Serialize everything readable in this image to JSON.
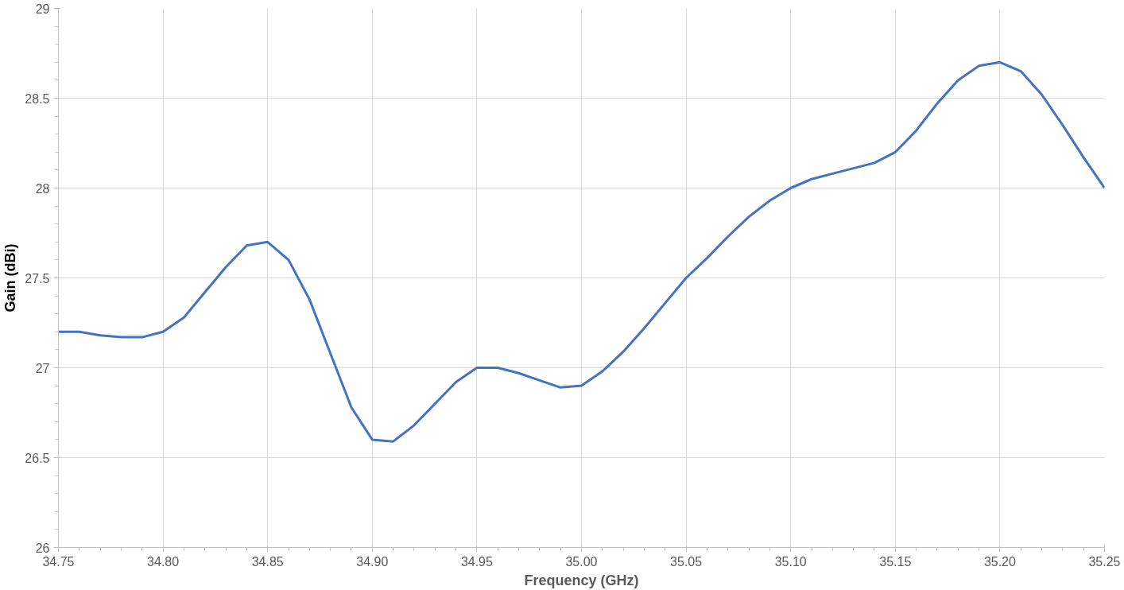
{
  "chart_data": {
    "type": "line",
    "xlabel": "Frequency (GHz)",
    "ylabel": "Gain (dBi)",
    "x": [
      34.75,
      34.76,
      34.77,
      34.78,
      34.79,
      34.8,
      34.81,
      34.82,
      34.83,
      34.84,
      34.85,
      34.86,
      34.87,
      34.88,
      34.89,
      34.9,
      34.91,
      34.92,
      34.93,
      34.94,
      34.95,
      34.96,
      34.97,
      34.98,
      34.99,
      35.0,
      35.01,
      35.02,
      35.03,
      35.04,
      35.05,
      35.06,
      35.07,
      35.08,
      35.09,
      35.1,
      35.11,
      35.12,
      35.13,
      35.14,
      35.15,
      35.16,
      35.17,
      35.18,
      35.19,
      35.2,
      35.21,
      35.22,
      35.23,
      35.24,
      35.25
    ],
    "series": [
      {
        "color": "#4472c4",
        "values": [
          27.2,
          27.2,
          27.18,
          27.17,
          27.17,
          27.2,
          27.28,
          27.42,
          27.56,
          27.68,
          27.7,
          27.6,
          27.38,
          27.08,
          26.78,
          26.6,
          26.59,
          26.68,
          26.8,
          26.92,
          27.0,
          27.0,
          26.97,
          26.93,
          26.89,
          26.9,
          26.98,
          27.09,
          27.22,
          27.36,
          27.5,
          27.61,
          27.73,
          27.84,
          27.93,
          28.0,
          28.05,
          28.08,
          28.11,
          28.14,
          28.2,
          28.32,
          28.47,
          28.6,
          28.68,
          28.7,
          28.65,
          28.52,
          28.35,
          28.17,
          28.0
        ]
      }
    ],
    "xlim": [
      34.75,
      35.25
    ],
    "ylim": [
      26,
      29
    ],
    "xticks": [
      {
        "value": 34.75,
        "label": "34.75"
      },
      {
        "value": 34.8,
        "label": "34.80"
      },
      {
        "value": 34.85,
        "label": "34.85"
      },
      {
        "value": 34.9,
        "label": "34.90"
      },
      {
        "value": 34.95,
        "label": "34.95"
      },
      {
        "value": 35.0,
        "label": "35.00"
      },
      {
        "value": 35.05,
        "label": "35.05"
      },
      {
        "value": 35.1,
        "label": "35.10"
      },
      {
        "value": 35.15,
        "label": "35.15"
      },
      {
        "value": 35.2,
        "label": "35.20"
      },
      {
        "value": 35.25,
        "label": "35.25"
      }
    ],
    "yticks": [
      26,
      26.5,
      27,
      27.5,
      28,
      28.5,
      29
    ],
    "grid": true,
    "marker": "none",
    "line_style": "solid"
  }
}
